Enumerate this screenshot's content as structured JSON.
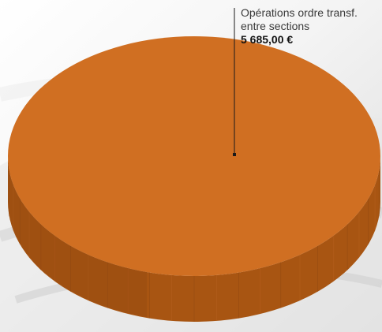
{
  "chart_data": {
    "type": "pie",
    "style": "3d",
    "title": "",
    "slices": [
      {
        "label": "Opérations ordre transf.\nentre sections",
        "value": 5685.0,
        "value_label": "5 685,00 €",
        "color": "#D06F22"
      }
    ],
    "legend": "none"
  },
  "colors": {
    "slice_top": "#D06F22",
    "slice_side": "#A85512",
    "slice_side_dark": "#8F4710"
  }
}
